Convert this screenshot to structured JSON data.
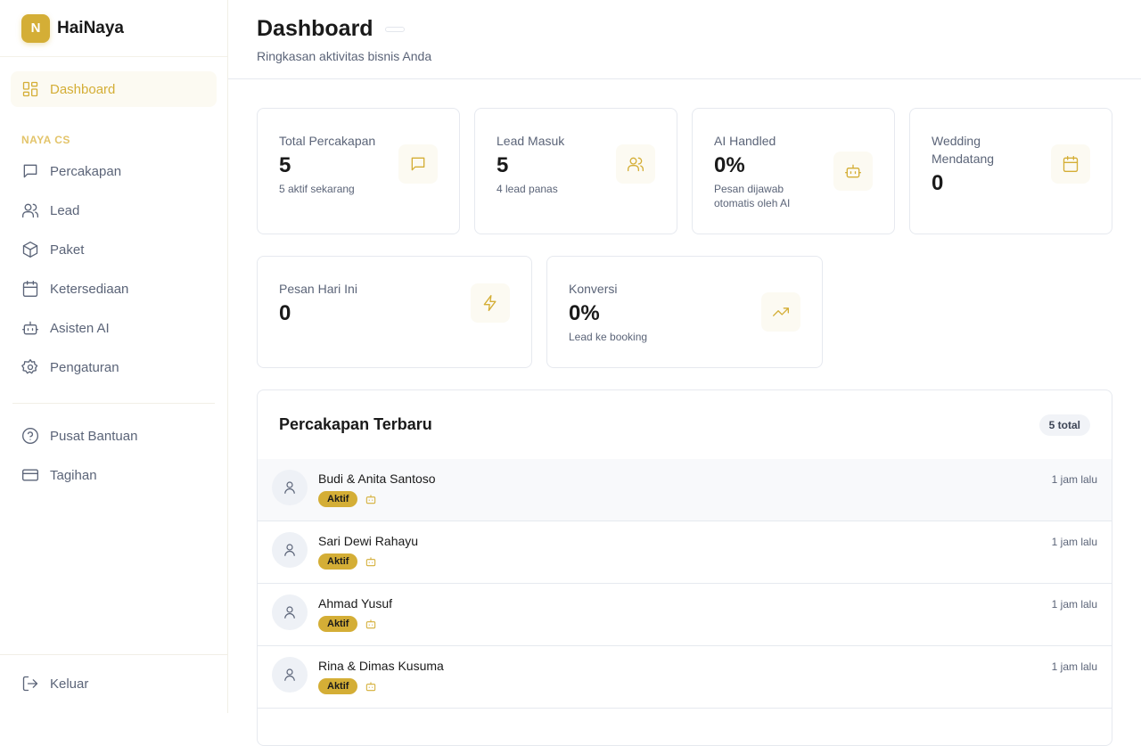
{
  "brand": {
    "initial": "N",
    "name": "HaiNaya"
  },
  "accent": "#d4ae36",
  "sidebar": {
    "dashboard": "Dashboard",
    "section": "NAYA CS",
    "items": [
      {
        "label": "Percakapan",
        "icon": "message-icon"
      },
      {
        "label": "Lead",
        "icon": "users-icon"
      },
      {
        "label": "Paket",
        "icon": "package-icon"
      },
      {
        "label": "Ketersediaan",
        "icon": "calendar-icon"
      },
      {
        "label": "Asisten AI",
        "icon": "bot-icon"
      },
      {
        "label": "Pengaturan",
        "icon": "gear-icon"
      }
    ],
    "help": "Pusat Bantuan",
    "billing": "Tagihan",
    "logout": "Keluar"
  },
  "header": {
    "title": "Dashboard",
    "subtitle": "Ringkasan aktivitas bisnis Anda"
  },
  "stats": [
    {
      "label": "Total Percakapan",
      "value": "5",
      "sub": "5 aktif sekarang"
    },
    {
      "label": "Lead Masuk",
      "value": "5",
      "sub": "4 lead panas"
    },
    {
      "label": "AI Handled",
      "value": "0%",
      "sub": "Pesan dijawab otomatis oleh AI"
    },
    {
      "label": "Wedding Mendatang",
      "value": "0",
      "sub": ""
    },
    {
      "label": "Pesan Hari Ini",
      "value": "0",
      "sub": ""
    },
    {
      "label": "Konversi",
      "value": "0%",
      "sub": "Lead ke booking"
    }
  ],
  "recent": {
    "title": "Percakapan Terbaru",
    "count": "5 total",
    "rows": [
      {
        "name": "Budi & Anita Santoso",
        "status": "Aktif",
        "time": "1 jam lalu"
      },
      {
        "name": "Sari Dewi Rahayu",
        "status": "Aktif",
        "time": "1 jam lalu"
      },
      {
        "name": "Ahmad Yusuf",
        "status": "Aktif",
        "time": "1 jam lalu"
      },
      {
        "name": "Rina & Dimas Kusuma",
        "status": "Aktif",
        "time": "1 jam lalu"
      }
    ]
  }
}
